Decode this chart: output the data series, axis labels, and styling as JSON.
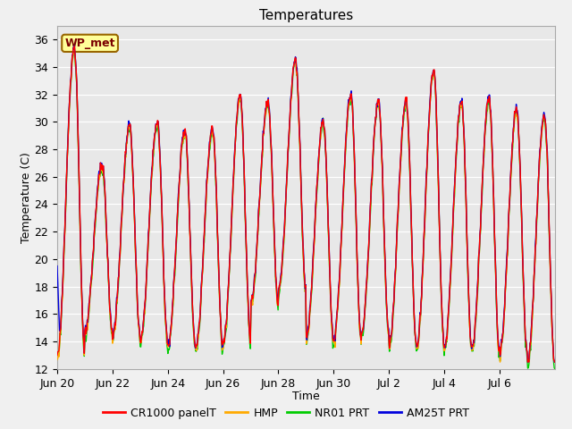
{
  "title": "Temperatures",
  "xlabel": "Time",
  "ylabel": "Temperature (C)",
  "ylim": [
    12,
    37
  ],
  "yticks": [
    12,
    14,
    16,
    18,
    20,
    22,
    24,
    26,
    28,
    30,
    32,
    34,
    36
  ],
  "fig_bg_color": "#f0f0f0",
  "plot_bg_color": "#e8e8e8",
  "annotation_text": "WP_met",
  "annotation_bg": "#ffff99",
  "annotation_border": "#996600",
  "series_colors": {
    "CR1000 panelT": "#ff0000",
    "HMP": "#ffaa00",
    "NR01 PRT": "#00cc00",
    "AM25T PRT": "#0000dd"
  },
  "xtick_labels": [
    "Jun 20",
    "Jun 22",
    "Jun 24",
    "Jun 26",
    "Jun 28",
    "Jun 30",
    "Jul 2",
    "Jul 4",
    "Jul 6"
  ],
  "xtick_positions": [
    0,
    2,
    4,
    6,
    8,
    10,
    12,
    14,
    16
  ],
  "total_days": 18,
  "day_peaks": [
    35.5,
    27.0,
    29.8,
    30.0,
    29.5,
    29.5,
    32.0,
    31.5,
    34.5,
    30.0,
    32.0,
    31.5,
    31.5,
    33.8,
    31.5,
    31.7,
    31.0,
    30.5
  ],
  "day_mins": [
    13.0,
    14.7,
    14.5,
    14.0,
    13.7,
    13.5,
    14.0,
    16.8,
    17.8,
    14.2,
    14.2,
    14.5,
    13.7,
    13.7,
    13.5,
    13.5,
    13.2,
    12.4
  ],
  "legend_entries": [
    "CR1000 panelT",
    "HMP",
    "NR01 PRT",
    "AM25T PRT"
  ]
}
